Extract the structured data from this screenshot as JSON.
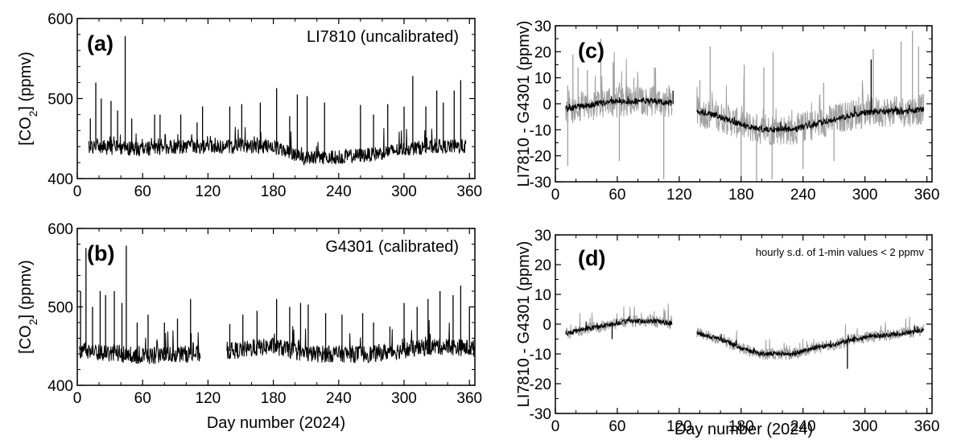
{
  "chart_data": [
    {
      "id": "a",
      "type": "line",
      "panel_label": "(a)",
      "annotation": "LI7810 (uncalibrated)",
      "ylabel": "[CO2] (ppmv)",
      "ylabel_main": "[CO",
      "ylabel_sub": "2",
      "ylabel_tail": "] (ppmv)",
      "xlabel": "",
      "xlim": [
        0,
        365
      ],
      "ylim": [
        400,
        600
      ],
      "xticks": [
        0,
        60,
        120,
        180,
        240,
        300,
        360
      ],
      "yticks": [
        400,
        500,
        600
      ],
      "series": [
        {
          "color": "#000000",
          "segments": [
            [
              10,
              357
            ]
          ],
          "baseline": [
            [
              10,
              440
            ],
            [
              40,
              438
            ],
            [
              60,
              437
            ],
            [
              90,
              440
            ],
            [
              120,
              440
            ],
            [
              150,
              440
            ],
            [
              180,
              440
            ],
            [
              210,
              425
            ],
            [
              240,
              427
            ],
            [
              270,
              430
            ],
            [
              300,
              437
            ],
            [
              330,
              440
            ],
            [
              357,
              440
            ]
          ],
          "noise": 9,
          "spikes": [
            [
              12,
              475
            ],
            [
              17,
              520
            ],
            [
              22,
              500
            ],
            [
              31,
              497
            ],
            [
              37,
              485
            ],
            [
              44,
              578
            ],
            [
              50,
              475
            ],
            [
              71,
              480
            ],
            [
              76,
              480
            ],
            [
              95,
              480
            ],
            [
              110,
              470
            ],
            [
              115,
              490
            ],
            [
              140,
              490
            ],
            [
              151,
              493
            ],
            [
              168,
              495
            ],
            [
              183,
              513
            ],
            [
              195,
              478
            ],
            [
              202,
              505
            ],
            [
              211,
              503
            ],
            [
              227,
              495
            ],
            [
              260,
              492
            ],
            [
              272,
              480
            ],
            [
              285,
              493
            ],
            [
              300,
              490
            ],
            [
              308,
              528
            ],
            [
              320,
              490
            ],
            [
              330,
              510
            ],
            [
              336,
              495
            ],
            [
              346,
              510
            ],
            [
              352,
              523
            ]
          ]
        }
      ]
    },
    {
      "id": "b",
      "type": "line",
      "panel_label": "(b)",
      "annotation": "G4301 (calibrated)",
      "ylabel": "[CO2] (ppmv)",
      "ylabel_main": "[CO",
      "ylabel_sub": "2",
      "ylabel_tail": "] (ppmv)",
      "xlabel": "Day number (2024)",
      "xlim": [
        0,
        365
      ],
      "ylim": [
        400,
        600
      ],
      "xticks": [
        0,
        60,
        120,
        180,
        240,
        300,
        360
      ],
      "yticks": [
        400,
        500,
        600
      ],
      "series": [
        {
          "color": "#000000",
          "segments": [
            [
              2,
              113
            ],
            [
              137,
              365
            ]
          ],
          "baseline": [
            [
              2,
              445
            ],
            [
              40,
              440
            ],
            [
              60,
              437
            ],
            [
              90,
              440
            ],
            [
              113,
              440
            ],
            [
              137,
              443
            ],
            [
              180,
              450
            ],
            [
              210,
              440
            ],
            [
              240,
              440
            ],
            [
              270,
              440
            ],
            [
              300,
              445
            ],
            [
              330,
              450
            ],
            [
              365,
              447
            ]
          ],
          "noise": 11,
          "spikes": [
            [
              3,
              520
            ],
            [
              8,
              575
            ],
            [
              14,
              500
            ],
            [
              21,
              520
            ],
            [
              26,
              515
            ],
            [
              34,
              520
            ],
            [
              41,
              505
            ],
            [
              45,
              578
            ],
            [
              55,
              480
            ],
            [
              65,
              490
            ],
            [
              80,
              480
            ],
            [
              92,
              485
            ],
            [
              104,
              510
            ],
            [
              140,
              478
            ],
            [
              152,
              490
            ],
            [
              165,
              495
            ],
            [
              183,
              510
            ],
            [
              195,
              500
            ],
            [
              205,
              505
            ],
            [
              212,
              503
            ],
            [
              228,
              492
            ],
            [
              243,
              490
            ],
            [
              262,
              492
            ],
            [
              272,
              480
            ],
            [
              287,
              475
            ],
            [
              300,
              505
            ],
            [
              312,
              500
            ],
            [
              322,
              510
            ],
            [
              333,
              520
            ],
            [
              345,
              515
            ],
            [
              352,
              527
            ],
            [
              360,
              500
            ]
          ]
        }
      ]
    },
    {
      "id": "c",
      "type": "line",
      "panel_label": "(c)",
      "annotation": "",
      "ylabel": "LI7810 - G4301 (ppmv)",
      "xlabel": "",
      "xlim": [
        0,
        365
      ],
      "ylim": [
        -30,
        30
      ],
      "xticks": [
        0,
        60,
        120,
        180,
        240,
        300,
        360
      ],
      "yticks": [
        -30,
        -20,
        -10,
        0,
        10,
        20,
        30
      ],
      "series": [
        {
          "color": "#a0a0a0",
          "segments": [
            [
              10,
              113
            ],
            [
              137,
              357
            ]
          ],
          "baseline": [
            [
              10,
              -2
            ],
            [
              40,
              0
            ],
            [
              70,
              1
            ],
            [
              100,
              1
            ],
            [
              113,
              0
            ],
            [
              137,
              -3
            ],
            [
              160,
              -5
            ],
            [
              180,
              -8
            ],
            [
              200,
              -10
            ],
            [
              230,
              -10
            ],
            [
              250,
              -8
            ],
            [
              270,
              -6
            ],
            [
              290,
              -4
            ],
            [
              310,
              -3
            ],
            [
              340,
              -3
            ],
            [
              357,
              -2
            ]
          ],
          "noise": 6,
          "spikes": [
            [
              12,
              7
            ],
            [
              17,
              19
            ],
            [
              22,
              14
            ],
            [
              31,
              13
            ],
            [
              44,
              25
            ],
            [
              56,
              16
            ],
            [
              76,
              10
            ],
            [
              96,
              14
            ],
            [
              110,
              7
            ],
            [
              140,
              9
            ],
            [
              150,
              22
            ],
            [
              183,
              15
            ],
            [
              202,
              14
            ],
            [
              211,
              20
            ],
            [
              260,
              8
            ],
            [
              308,
              21
            ],
            [
              335,
              24
            ],
            [
              346,
              28
            ],
            [
              352,
              22
            ],
            [
              12,
              -24
            ],
            [
              62,
              -22
            ],
            [
              105,
              -29
            ],
            [
              180,
              -28
            ],
            [
              195,
              -30
            ],
            [
              210,
              -29
            ],
            [
              240,
              -25
            ],
            [
              270,
              -22
            ]
          ]
        },
        {
          "color": "#000000",
          "segments": [
            [
              10,
              113
            ],
            [
              137,
              357
            ]
          ],
          "baseline": [
            [
              10,
              -2
            ],
            [
              40,
              0
            ],
            [
              70,
              1
            ],
            [
              100,
              1
            ],
            [
              113,
              0
            ],
            [
              137,
              -3
            ],
            [
              160,
              -5
            ],
            [
              180,
              -8
            ],
            [
              200,
              -10
            ],
            [
              230,
              -10
            ],
            [
              250,
              -8
            ],
            [
              270,
              -6
            ],
            [
              290,
              -4
            ],
            [
              310,
              -3
            ],
            [
              340,
              -3
            ],
            [
              357,
              -2
            ]
          ],
          "noise": 1.2,
          "spikes": [
            [
              306,
              17
            ],
            [
              114,
              5
            ]
          ]
        }
      ]
    },
    {
      "id": "d",
      "type": "line",
      "panel_label": "(d)",
      "annotation": "hourly s.d. of 1-min values < 2 ppmv",
      "ylabel": "LI7810 - G4301 (ppmv)",
      "xlabel": "Day number (2024)",
      "xlim": [
        0,
        365
      ],
      "ylim": [
        -30,
        30
      ],
      "xticks": [
        0,
        60,
        120,
        180,
        240,
        300,
        360
      ],
      "yticks": [
        -30,
        -20,
        -10,
        0,
        10,
        20,
        30
      ],
      "series": [
        {
          "color": "#a0a0a0",
          "segments": [
            [
              10,
              113
            ],
            [
              137,
              357
            ]
          ],
          "baseline": [
            [
              10,
              -3
            ],
            [
              40,
              -1
            ],
            [
              70,
              1
            ],
            [
              100,
              1
            ],
            [
              113,
              0
            ],
            [
              137,
              -3
            ],
            [
              160,
              -5
            ],
            [
              180,
              -8
            ],
            [
              200,
              -10
            ],
            [
              230,
              -10
            ],
            [
              250,
              -8
            ],
            [
              270,
              -7
            ],
            [
              290,
              -5
            ],
            [
              310,
              -4
            ],
            [
              340,
              -3
            ],
            [
              357,
              -2
            ]
          ],
          "noise": 2,
          "spikes": []
        },
        {
          "color": "#000000",
          "segments": [
            [
              10,
              113
            ],
            [
              137,
              357
            ]
          ],
          "baseline": [
            [
              10,
              -3
            ],
            [
              40,
              -1
            ],
            [
              70,
              1
            ],
            [
              100,
              1
            ],
            [
              113,
              0
            ],
            [
              137,
              -3
            ],
            [
              160,
              -5
            ],
            [
              180,
              -8
            ],
            [
              200,
              -10
            ],
            [
              230,
              -10
            ],
            [
              250,
              -8
            ],
            [
              270,
              -7
            ],
            [
              290,
              -5
            ],
            [
              310,
              -4
            ],
            [
              340,
              -3
            ],
            [
              357,
              -2
            ]
          ],
          "noise": 0.8,
          "spikes": [
            [
              283,
              -15
            ],
            [
              55,
              -5
            ]
          ]
        }
      ]
    }
  ]
}
